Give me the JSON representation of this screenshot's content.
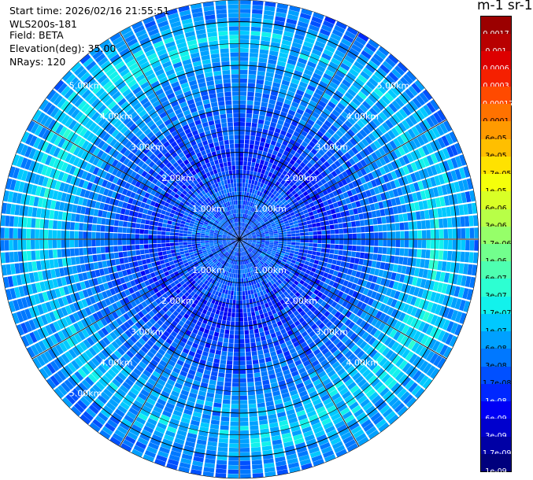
{
  "info": {
    "start_time": "Start time: 2026/02/16 21:55:51",
    "instrument": "WLS200s-181",
    "field": "Field: BETA",
    "elevation": "Elevation(deg): 35.00",
    "nrays": "NRays: 120"
  },
  "legend_title": "m-1 sr-1",
  "chart_data": {
    "type": "heatmap",
    "projection": "polar",
    "field": "BETA",
    "rays": 120,
    "range_max_km": 5.5,
    "range_ring_labels_km": [
      "1.00km",
      "2.00km",
      "3.00km",
      "4.00km",
      "5.00km"
    ],
    "colorscale_labels": [
      "0.0017",
      "0.001",
      "0.0006",
      "0.0003",
      "0.00017",
      "0.0001",
      "6e-05",
      "3e-05",
      "1.7e-05",
      "1e-05",
      "6e-06",
      "3e-06",
      "1.7e-06",
      "1e-06",
      "6e-07",
      "3e-07",
      "1.7e-07",
      "1e-07",
      "6e-08",
      "3e-08",
      "1.7e-08",
      "1e-08",
      "6e-09",
      "3e-09",
      "1.7e-09",
      "1e-09"
    ],
    "colorscale_colors": [
      "#9b0000",
      "#b80000",
      "#dd0000",
      "#f52000",
      "#ff4a00",
      "#ff7200",
      "#ff9a00",
      "#ffbf00",
      "#ffe200",
      "#f5ff0a",
      "#d9ff26",
      "#b8ff47",
      "#96ff69",
      "#72ff8d",
      "#4effb1",
      "#2dffd2",
      "#12f2ec",
      "#00c9ff",
      "#00a0ff",
      "#0078ff",
      "#0050ff",
      "#0028ff",
      "#0000f5",
      "#0000cd",
      "#0000a5",
      "#00007d"
    ],
    "colorscale_label_colors": [
      "#ffffff",
      "#ffffff",
      "#ffffff",
      "#ffffff",
      "#ffffff",
      "#000000",
      "#000000",
      "#000000",
      "#000000",
      "#000000",
      "#000000",
      "#000000",
      "#000000",
      "#000000",
      "#000000",
      "#000000",
      "#000000",
      "#000000",
      "#000000",
      "#000000",
      "#000000",
      "#ffffff",
      "#ffffff",
      "#ffffff",
      "#ffffff",
      "#ffffff"
    ],
    "field_profile": [
      {
        "range_km": 0.0,
        "level": 19.8
      },
      {
        "range_km": 1.0,
        "level": 19.8
      },
      {
        "range_km": 1.3,
        "level": 20.3
      },
      {
        "range_km": 1.8,
        "level": 20.8
      },
      {
        "range_km": 2.2,
        "level": 20.6
      },
      {
        "range_km": 2.8,
        "level": 19.8
      },
      {
        "range_km": 3.5,
        "level": 18.8
      },
      {
        "range_km": 4.2,
        "level": 17.6
      },
      {
        "range_km": 4.55,
        "level": 16.8
      },
      {
        "range_km": 4.85,
        "level": 17.4
      },
      {
        "range_km": 5.2,
        "level": 18.4
      },
      {
        "range_km": 5.5,
        "level": 18.9
      }
    ],
    "grid": true
  }
}
